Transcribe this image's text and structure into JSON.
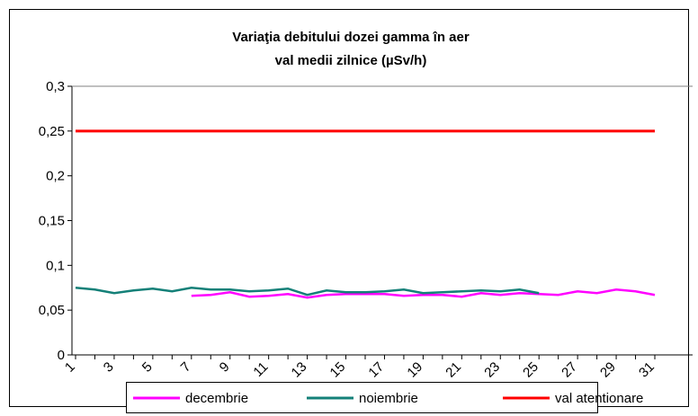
{
  "chart_data": {
    "type": "line",
    "title": [
      "Variaţia debitului dozei gamma în aer",
      "val medii zilnice (µSv/h)"
    ],
    "categories": [
      "1",
      null,
      "3",
      null,
      "5",
      null,
      "7",
      null,
      "9",
      null,
      "11",
      null,
      "13",
      null,
      "15",
      null,
      "17",
      null,
      "19",
      null,
      "21",
      null,
      "23",
      null,
      "25",
      null,
      "27",
      null,
      "29",
      null,
      "31"
    ],
    "series": [
      {
        "name": "decembrie",
        "color": "#ff00ff",
        "values": [
          null,
          null,
          null,
          null,
          null,
          null,
          0.066,
          0.067,
          0.07,
          0.065,
          0.066,
          0.068,
          0.064,
          0.067,
          0.068,
          0.068,
          0.068,
          0.066,
          0.067,
          0.067,
          0.065,
          0.069,
          0.067,
          0.069,
          0.068,
          0.067,
          0.071,
          0.069,
          0.073,
          0.071,
          0.067
        ]
      },
      {
        "name": "noiembrie",
        "color": "#148078",
        "values": [
          0.075,
          0.073,
          0.069,
          0.072,
          0.074,
          0.071,
          0.075,
          0.073,
          0.073,
          0.071,
          0.072,
          0.074,
          0.067,
          0.072,
          0.07,
          0.07,
          0.071,
          0.073,
          0.069,
          0.07,
          0.071,
          0.072,
          0.071,
          0.073,
          0.069,
          null,
          null,
          null,
          null,
          null,
          null
        ]
      },
      {
        "name": "val atentionare",
        "color": "#ff0000",
        "values": [
          0.25,
          0.25,
          0.25,
          0.25,
          0.25,
          0.25,
          0.25,
          0.25,
          0.25,
          0.25,
          0.25,
          0.25,
          0.25,
          0.25,
          0.25,
          0.25,
          0.25,
          0.25,
          0.25,
          0.25,
          0.25,
          0.25,
          0.25,
          0.25,
          0.25,
          0.25,
          0.25,
          0.25,
          0.25,
          0.25,
          0.25
        ]
      }
    ],
    "ylim": [
      0,
      0.3
    ],
    "yticks": [
      0,
      {
        "value": 0.05,
        "label": "0,05"
      },
      {
        "value": 0.1,
        "label": "0,1"
      },
      {
        "value": 0.15,
        "label": "0,15"
      },
      {
        "value": 0.2,
        "label": "0,2"
      },
      {
        "value": 0.25,
        "label": "0,25"
      },
      {
        "value": 0.3,
        "label": "0,3"
      }
    ],
    "grid": false,
    "legend": "bottom"
  }
}
